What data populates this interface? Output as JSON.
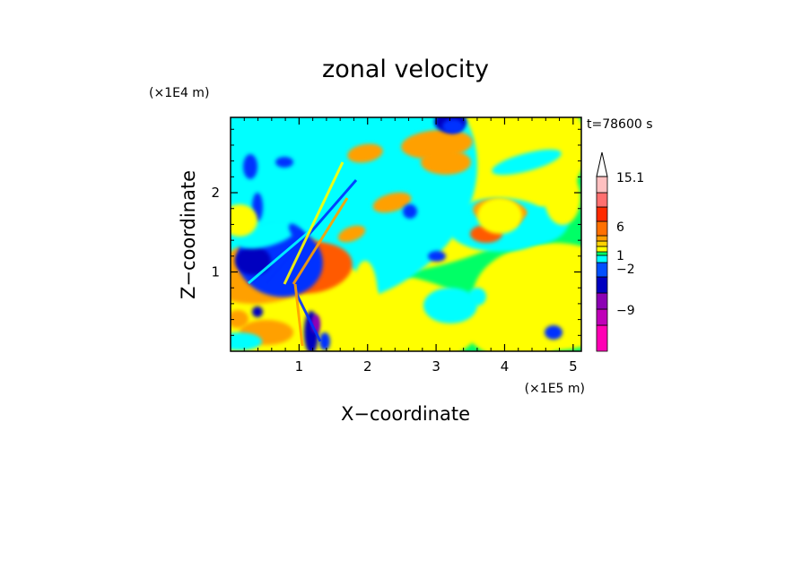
{
  "chart_data": {
    "type": "heatmap",
    "title": "zonal velocity",
    "xlabel": "X−coordinate",
    "ylabel": "Z−coordinate",
    "x_unit": "(×1E5 m)",
    "y_unit": "(×1E4 m)",
    "time_label": "t=78600 s",
    "xlim": [
      0,
      5.12
    ],
    "ylim": [
      0,
      2.95
    ],
    "x_ticks": [
      1,
      2,
      3,
      4,
      5
    ],
    "y_ticks": [
      1,
      2
    ],
    "colorbar": {
      "colors": [
        "#ff00b4",
        "#c000b8",
        "#8c00b4",
        "#0000c0",
        "#0050ff",
        "#00ffff",
        "#00ff66",
        "#ffff00",
        "#ffd200",
        "#ffa000",
        "#ff7000",
        "#ff2a00",
        "#ff7070",
        "#ffc0c0"
      ],
      "labels": [
        {
          "text": "15.1",
          "level": 15.1
        },
        {
          "text": "6",
          "level": 6
        },
        {
          "text": "1",
          "level": 1
        },
        {
          "text": "−2",
          "level": -2
        },
        {
          "text": "−9",
          "level": -9
        }
      ]
    }
  }
}
